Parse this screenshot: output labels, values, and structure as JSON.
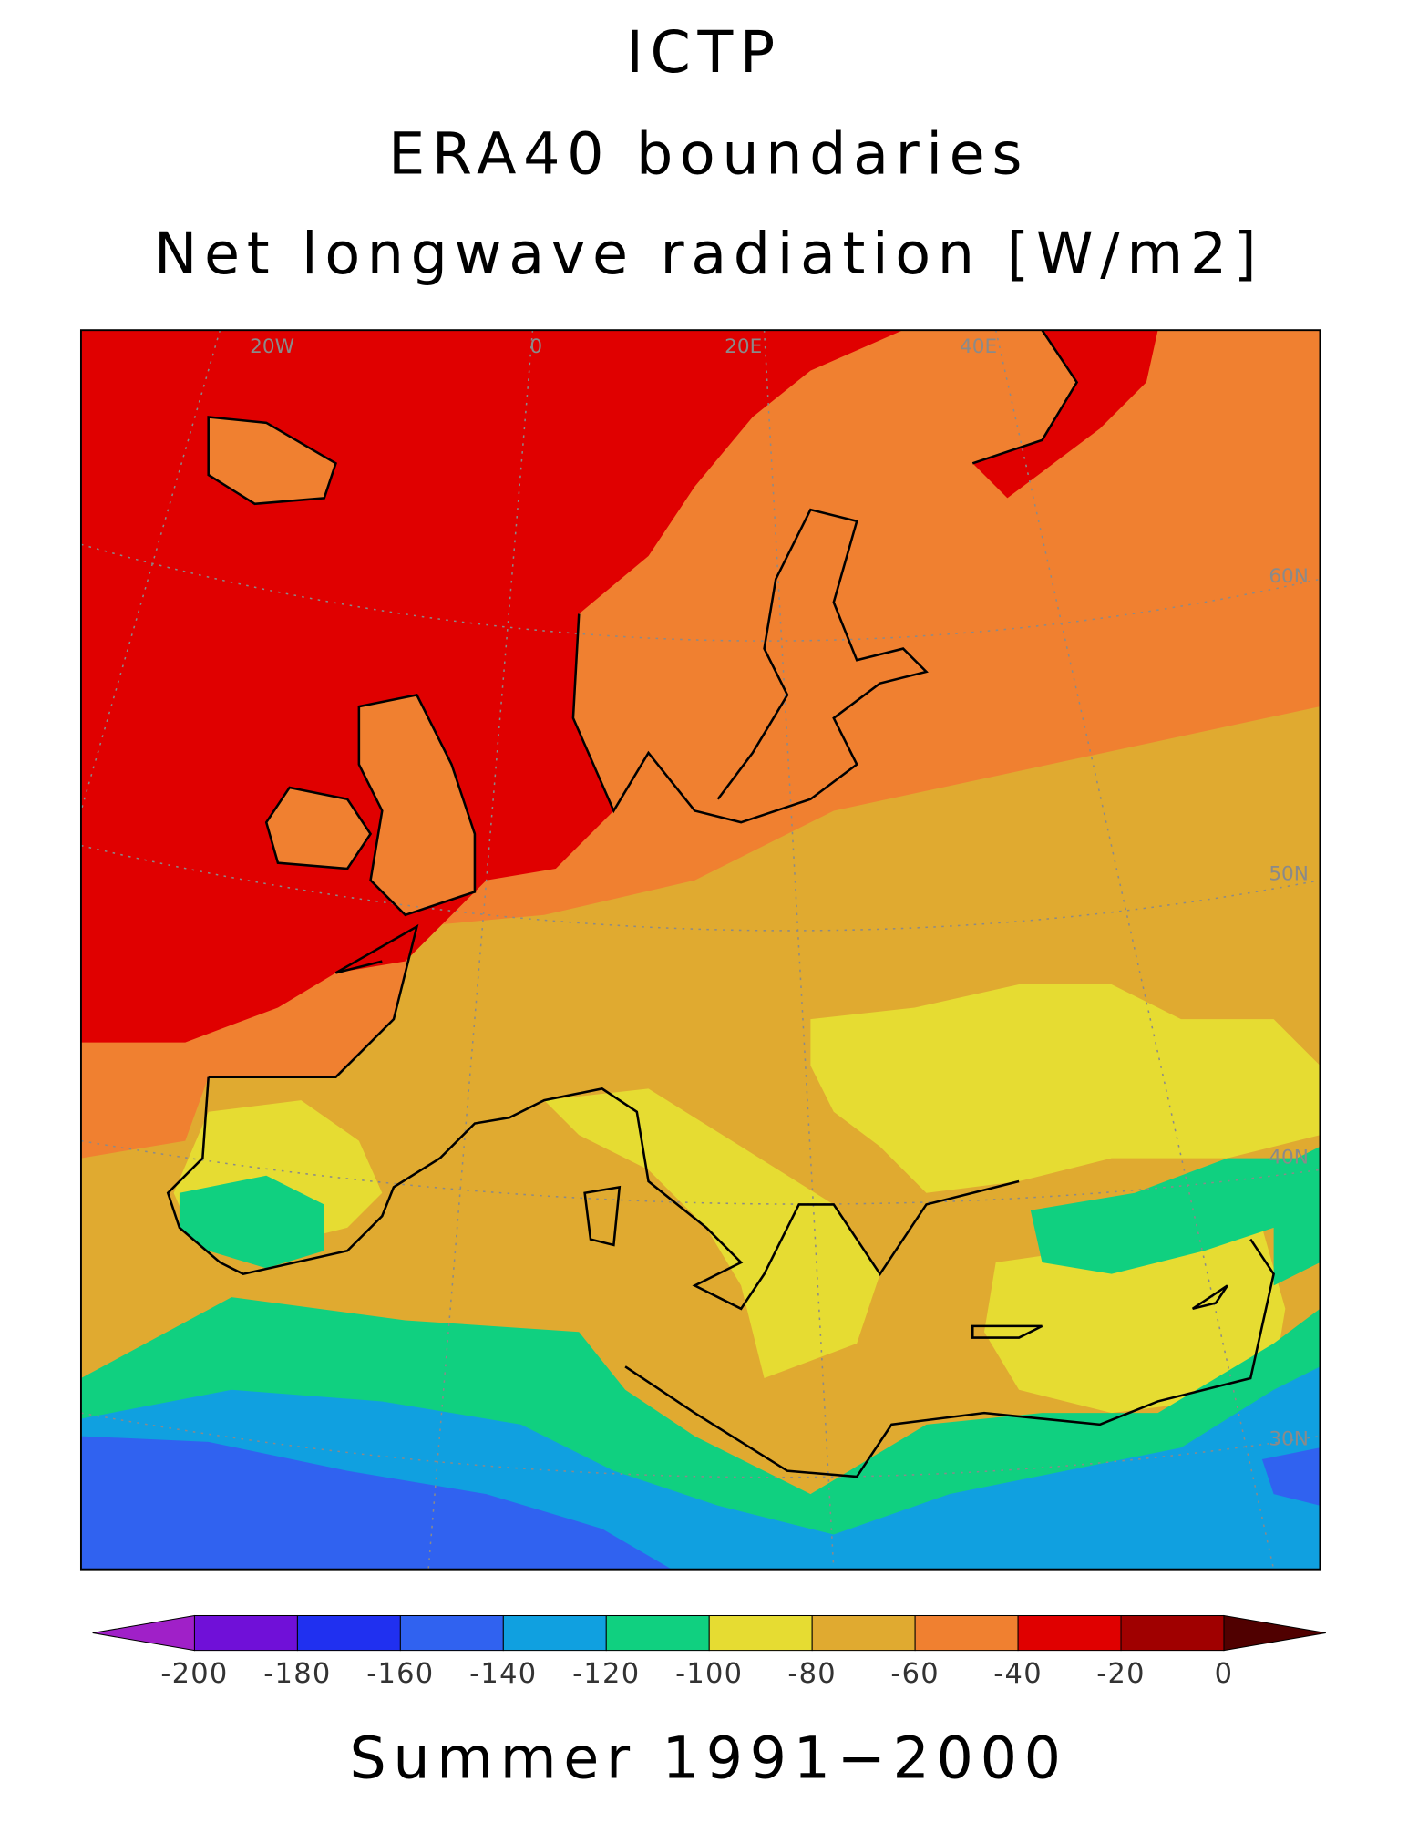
{
  "title": [
    "ICTP",
    "ERA40 boundaries",
    "Net longwave radiation [W/m2]"
  ],
  "map": {
    "labels": [
      "20W",
      "0",
      "20E",
      "40E",
      "60N",
      "50N",
      "40N",
      "30N"
    ]
  },
  "colorbar": {
    "ticks": [
      -200,
      -180,
      -160,
      -140,
      -120,
      -100,
      -80,
      -60,
      -40,
      -20,
      0
    ],
    "colors": [
      "#a020c8",
      "#7010d8",
      "#2030f0",
      "#3062f0",
      "#10a0e0",
      "#10d080",
      "#e6dc32",
      "#e0aa30",
      "#f08030",
      "#e00000",
      "#a00000",
      "#500000"
    ]
  },
  "footer": "Summer 1991−2000"
}
